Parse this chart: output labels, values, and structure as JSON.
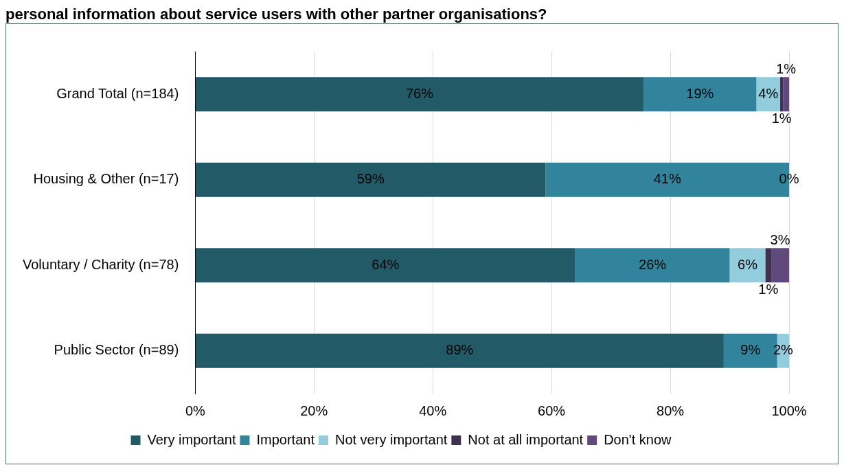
{
  "chart_data": {
    "type": "bar",
    "orientation": "horizontal",
    "stacked": true,
    "title": "personal information about service users with other partner organisations?",
    "categories": [
      "Grand Total (n=184)",
      "Housing & Other (n=17)",
      "Voluntary / Charity (n=78)",
      "Public Sector (n=89)"
    ],
    "series": [
      {
        "name": "Very important",
        "color": "#225a68",
        "values": [
          75.5,
          59,
          64,
          89
        ],
        "value_labels": [
          "76%",
          "59%",
          "64%",
          "89%"
        ]
      },
      {
        "name": "Important",
        "color": "#31849b",
        "values": [
          19,
          41,
          26,
          9
        ],
        "value_labels": [
          "19%",
          "41%",
          "26%",
          "9%"
        ]
      },
      {
        "name": "Not very important",
        "color": "#93cddd",
        "values": [
          4,
          0,
          6,
          2
        ],
        "value_labels": [
          "4%",
          "0%",
          "6%",
          "2%"
        ]
      },
      {
        "name": "Not at all important",
        "color": "#3f3151",
        "values": [
          0.5,
          null,
          1,
          null
        ],
        "value_labels": [
          "1%",
          null,
          "1%",
          null
        ]
      },
      {
        "name": "Don't know",
        "color": "#604a7b",
        "values": [
          1,
          null,
          3,
          null
        ],
        "value_labels": [
          "1%",
          null,
          "3%",
          null
        ]
      }
    ],
    "xlim": [
      0,
      100
    ],
    "xticks": [
      {
        "value": 0,
        "label": "0%"
      },
      {
        "value": 20,
        "label": "20%"
      },
      {
        "value": 40,
        "label": "40%"
      },
      {
        "value": 60,
        "label": "60%"
      },
      {
        "value": 80,
        "label": "80%"
      },
      {
        "value": 100,
        "label": "100%"
      }
    ],
    "grid": "x",
    "legend": "bottom"
  }
}
